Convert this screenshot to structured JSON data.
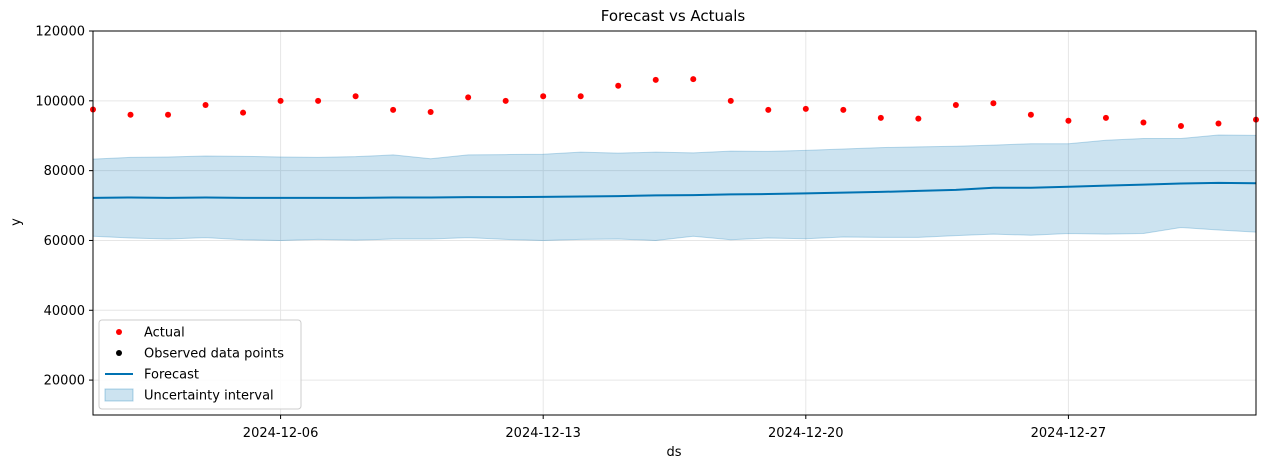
{
  "chart_data": {
    "type": "line",
    "title": "Forecast vs Actuals",
    "xlabel": "ds",
    "ylabel": "y",
    "x_start": "2024-12-01",
    "x_end": "2025-01-01",
    "ylim": [
      10000,
      120000
    ],
    "grid": true,
    "x_ticks": [
      "2024-12-06",
      "2024-12-13",
      "2024-12-20",
      "2024-12-27"
    ],
    "y_ticks": [
      20000,
      40000,
      60000,
      80000,
      100000,
      120000
    ],
    "legend_position": "bottom-left",
    "legend": [
      {
        "label": "Actual",
        "kind": "marker",
        "color": "#ff0000"
      },
      {
        "label": "Observed data points",
        "kind": "marker",
        "color": "#000000"
      },
      {
        "label": "Forecast",
        "kind": "line",
        "color": "#0072b2"
      },
      {
        "label": "Uncertainty interval",
        "kind": "band",
        "color": "#0072b2"
      }
    ],
    "actual": {
      "color": "#ff0000",
      "points": [
        [
          "2024-12-01",
          97500
        ],
        [
          "2024-12-02",
          96000
        ],
        [
          "2024-12-03",
          96000
        ],
        [
          "2024-12-04",
          98800
        ],
        [
          "2024-12-05",
          96600
        ],
        [
          "2024-12-06",
          100000
        ],
        [
          "2024-12-07",
          100000
        ],
        [
          "2024-12-08",
          101300
        ],
        [
          "2024-12-09",
          97400
        ],
        [
          "2024-12-10",
          96800
        ],
        [
          "2024-12-11",
          101000
        ],
        [
          "2024-12-12",
          100000
        ],
        [
          "2024-12-13",
          101300
        ],
        [
          "2024-12-14",
          101300
        ],
        [
          "2024-12-15",
          104300
        ],
        [
          "2024-12-16",
          106000
        ],
        [
          "2024-12-17",
          106200
        ],
        [
          "2024-12-18",
          100000
        ],
        [
          "2024-12-19",
          97400
        ],
        [
          "2024-12-20",
          97700
        ],
        [
          "2024-12-21",
          97400
        ],
        [
          "2024-12-22",
          95100
        ],
        [
          "2024-12-23",
          94900
        ],
        [
          "2024-12-24",
          98800
        ],
        [
          "2024-12-25",
          99300
        ],
        [
          "2024-12-26",
          96000
        ],
        [
          "2024-12-27",
          94300
        ],
        [
          "2024-12-28",
          95100
        ],
        [
          "2024-12-29",
          93800
        ],
        [
          "2024-12-30",
          92800
        ],
        [
          "2024-12-31",
          93500
        ],
        [
          "2025-01-01",
          94600
        ]
      ]
    },
    "forecast": {
      "color": "#0072b2",
      "points": [
        [
          "2024-12-01",
          72200
        ],
        [
          "2024-12-02",
          72300
        ],
        [
          "2024-12-03",
          72200
        ],
        [
          "2024-12-04",
          72300
        ],
        [
          "2024-12-05",
          72200
        ],
        [
          "2024-12-06",
          72200
        ],
        [
          "2024-12-07",
          72200
        ],
        [
          "2024-12-08",
          72200
        ],
        [
          "2024-12-09",
          72300
        ],
        [
          "2024-12-10",
          72300
        ],
        [
          "2024-12-11",
          72400
        ],
        [
          "2024-12-12",
          72400
        ],
        [
          "2024-12-13",
          72500
        ],
        [
          "2024-12-14",
          72600
        ],
        [
          "2024-12-15",
          72700
        ],
        [
          "2024-12-16",
          72900
        ],
        [
          "2024-12-17",
          73000
        ],
        [
          "2024-12-18",
          73200
        ],
        [
          "2024-12-19",
          73300
        ],
        [
          "2024-12-20",
          73500
        ],
        [
          "2024-12-21",
          73700
        ],
        [
          "2024-12-22",
          73900
        ],
        [
          "2024-12-23",
          74200
        ],
        [
          "2024-12-24",
          74500
        ],
        [
          "2024-12-25",
          75100
        ],
        [
          "2024-12-26",
          75100
        ],
        [
          "2024-12-27",
          75400
        ],
        [
          "2024-12-28",
          75700
        ],
        [
          "2024-12-29",
          76000
        ],
        [
          "2024-12-30",
          76300
        ],
        [
          "2024-12-31",
          76500
        ],
        [
          "2025-01-01",
          76400
        ]
      ]
    },
    "uncertainty": {
      "color": "#0072b2",
      "opacity": 0.2,
      "upper": [
        [
          "2024-12-01",
          83300
        ],
        [
          "2024-12-02",
          83800
        ],
        [
          "2024-12-03",
          83900
        ],
        [
          "2024-12-04",
          84200
        ],
        [
          "2024-12-05",
          84100
        ],
        [
          "2024-12-06",
          83900
        ],
        [
          "2024-12-07",
          83800
        ],
        [
          "2024-12-08",
          84000
        ],
        [
          "2024-12-09",
          84500
        ],
        [
          "2024-12-10",
          83400
        ],
        [
          "2024-12-11",
          84500
        ],
        [
          "2024-12-12",
          84600
        ],
        [
          "2024-12-13",
          84700
        ],
        [
          "2024-12-14",
          85300
        ],
        [
          "2024-12-15",
          85000
        ],
        [
          "2024-12-16",
          85300
        ],
        [
          "2024-12-17",
          85100
        ],
        [
          "2024-12-18",
          85600
        ],
        [
          "2024-12-19",
          85500
        ],
        [
          "2024-12-20",
          85800
        ],
        [
          "2024-12-21",
          86200
        ],
        [
          "2024-12-22",
          86600
        ],
        [
          "2024-12-23",
          86800
        ],
        [
          "2024-12-24",
          87000
        ],
        [
          "2024-12-25",
          87300
        ],
        [
          "2024-12-26",
          87700
        ],
        [
          "2024-12-27",
          87700
        ],
        [
          "2024-12-28",
          88700
        ],
        [
          "2024-12-29",
          89200
        ],
        [
          "2024-12-30",
          89200
        ],
        [
          "2024-12-31",
          90200
        ],
        [
          "2025-01-01",
          90100
        ]
      ],
      "lower": [
        [
          "2024-12-01",
          61200
        ],
        [
          "2024-12-02",
          60700
        ],
        [
          "2024-12-03",
          60400
        ],
        [
          "2024-12-04",
          60800
        ],
        [
          "2024-12-05",
          60200
        ],
        [
          "2024-12-06",
          60000
        ],
        [
          "2024-12-07",
          60300
        ],
        [
          "2024-12-08",
          60100
        ],
        [
          "2024-12-09",
          60400
        ],
        [
          "2024-12-10",
          60400
        ],
        [
          "2024-12-11",
          60800
        ],
        [
          "2024-12-12",
          60300
        ],
        [
          "2024-12-13",
          60000
        ],
        [
          "2024-12-14",
          60300
        ],
        [
          "2024-12-15",
          60400
        ],
        [
          "2024-12-16",
          60000
        ],
        [
          "2024-12-17",
          61200
        ],
        [
          "2024-12-18",
          60200
        ],
        [
          "2024-12-19",
          60700
        ],
        [
          "2024-12-20",
          60500
        ],
        [
          "2024-12-21",
          61000
        ],
        [
          "2024-12-22",
          60900
        ],
        [
          "2024-12-23",
          60900
        ],
        [
          "2024-12-24",
          61400
        ],
        [
          "2024-12-25",
          61800
        ],
        [
          "2024-12-26",
          61500
        ],
        [
          "2024-12-27",
          62000
        ],
        [
          "2024-12-28",
          61800
        ],
        [
          "2024-12-29",
          62000
        ],
        [
          "2024-12-30",
          63700
        ],
        [
          "2024-12-31",
          63000
        ],
        [
          "2025-01-01",
          62400
        ]
      ]
    }
  }
}
